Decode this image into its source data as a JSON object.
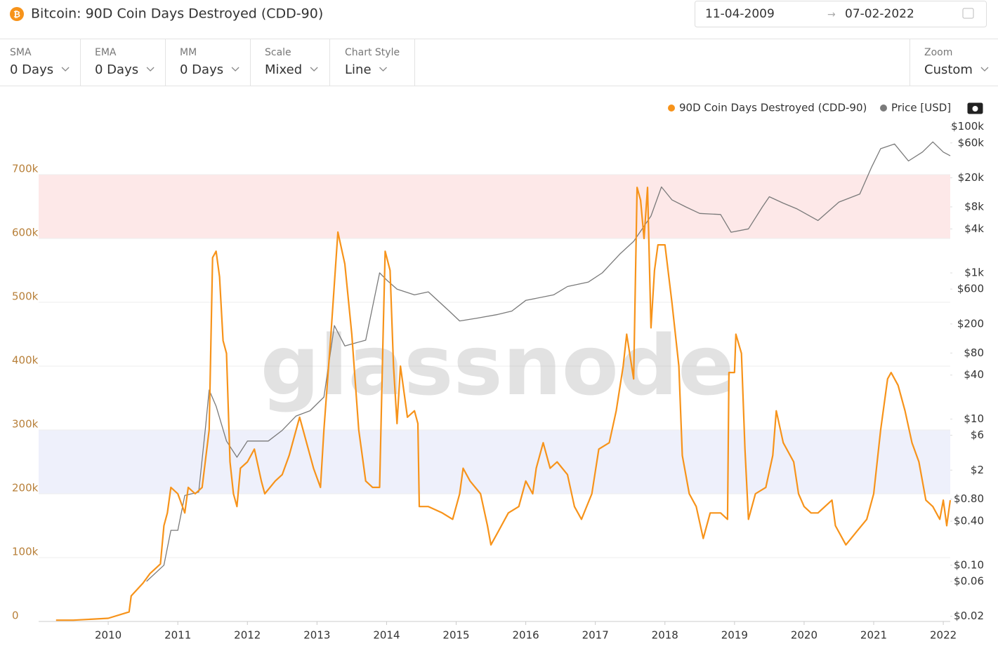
{
  "header": {
    "title": "Bitcoin: 90D Coin Days Destroyed (CDD-90)",
    "date_from": "11-04-2009",
    "date_to": "07-02-2022"
  },
  "controls": [
    {
      "label": "SMA",
      "value": "0 Days"
    },
    {
      "label": "EMA",
      "value": "0 Days"
    },
    {
      "label": "MM",
      "value": "0 Days"
    },
    {
      "label": "Scale",
      "value": "Mixed"
    },
    {
      "label": "Chart Style",
      "value": "Line"
    },
    {
      "label": "Zoom",
      "value": "Custom"
    }
  ],
  "watermark": "glassnode",
  "chart_data": {
    "type": "line",
    "legend": "top-right",
    "grid": true,
    "xlim": [
      2009,
      2022.1
    ],
    "xticks": [
      2010,
      2011,
      2012,
      2013,
      2014,
      2015,
      2016,
      2017,
      2018,
      2019,
      2020,
      2021,
      2022
    ],
    "ylim": [
      0,
      800000
    ],
    "yticks": [
      0,
      {
        "value": 100000,
        "label": "100k"
      },
      {
        "value": 200000,
        "label": "200k"
      },
      {
        "value": 300000,
        "label": "300k"
      },
      {
        "value": 400000,
        "label": "400k"
      },
      {
        "value": 500000,
        "label": "500k"
      },
      {
        "value": 600000,
        "label": "600k"
      },
      {
        "value": 700000,
        "label": "700k"
      }
    ],
    "y2lim": [
      0.017,
      165000
    ],
    "y2log": true,
    "y2ticks": [
      {
        "value": 0.02,
        "label": "$0.02"
      },
      {
        "value": 0.06,
        "label": "$0.06"
      },
      {
        "value": 0.1,
        "label": "$0.10"
      },
      {
        "value": 0.4,
        "label": "$0.40"
      },
      {
        "value": 0.8,
        "label": "$0.80"
      },
      {
        "value": 2,
        "label": "$2"
      },
      {
        "value": 6,
        "label": "$6"
      },
      {
        "value": 10,
        "label": "$10"
      },
      {
        "value": 40,
        "label": "$40"
      },
      {
        "value": 80,
        "label": "$80"
      },
      {
        "value": 200,
        "label": "$200"
      },
      {
        "value": 600,
        "label": "$600"
      },
      {
        "value": 1000,
        "label": "$1k"
      },
      {
        "value": 4000,
        "label": "$4k"
      },
      {
        "value": 8000,
        "label": "$8k"
      },
      {
        "value": 20000,
        "label": "$20k"
      },
      {
        "value": 60000,
        "label": "$60k"
      },
      {
        "value": 100000,
        "label": "$100k"
      }
    ],
    "bands": [
      {
        "from": 600000,
        "to": 700000,
        "color": "#fde8e8"
      },
      {
        "from": 200000,
        "to": 300000,
        "color": "#eef0fb"
      }
    ],
    "series": [
      {
        "name": "90D Coin Days Destroyed (CDD-90)",
        "color": "#f7931a",
        "axis": "y",
        "x": [
          2009.25,
          2009.5,
          2010.0,
          2010.3,
          2010.33,
          2010.5,
          2010.6,
          2010.75,
          2010.8,
          2010.85,
          2010.9,
          2011.0,
          2011.1,
          2011.15,
          2011.25,
          2011.35,
          2011.45,
          2011.5,
          2011.55,
          2011.6,
          2011.65,
          2011.7,
          2011.75,
          2011.8,
          2011.85,
          2011.9,
          2012.0,
          2012.1,
          2012.2,
          2012.25,
          2012.4,
          2012.5,
          2012.6,
          2012.75,
          2012.85,
          2012.95,
          2013.05,
          2013.1,
          2013.2,
          2013.3,
          2013.4,
          2013.5,
          2013.6,
          2013.7,
          2013.8,
          2013.9,
          2013.95,
          2013.98,
          2014.05,
          2014.1,
          2014.15,
          2014.2,
          2014.3,
          2014.4,
          2014.45,
          2014.47,
          2014.6,
          2014.8,
          2014.95,
          2015.05,
          2015.1,
          2015.2,
          2015.35,
          2015.45,
          2015.5,
          2015.6,
          2015.75,
          2015.9,
          2016.0,
          2016.1,
          2016.15,
          2016.25,
          2016.35,
          2016.45,
          2016.6,
          2016.7,
          2016.8,
          2016.95,
          2017.05,
          2017.2,
          2017.3,
          2017.4,
          2017.45,
          2017.55,
          2017.6,
          2017.65,
          2017.7,
          2017.75,
          2017.8,
          2017.85,
          2017.9,
          2018.0,
          2018.1,
          2018.2,
          2018.25,
          2018.35,
          2018.45,
          2018.55,
          2018.65,
          2018.8,
          2018.9,
          2018.92,
          2019.0,
          2019.02,
          2019.1,
          2019.15,
          2019.2,
          2019.3,
          2019.45,
          2019.55,
          2019.6,
          2019.7,
          2019.85,
          2019.92,
          2020.0,
          2020.1,
          2020.2,
          2020.3,
          2020.4,
          2020.45,
          2020.6,
          2020.75,
          2020.9,
          2021.0,
          2021.1,
          2021.2,
          2021.25,
          2021.35,
          2021.45,
          2021.55,
          2021.65,
          2021.75,
          2021.85,
          2021.95,
          2022.0,
          2022.05,
          2022.1
        ],
        "values": [
          2000,
          2000,
          5000,
          15000,
          40000,
          60000,
          75000,
          90000,
          150000,
          170000,
          210000,
          200000,
          170000,
          210000,
          200000,
          210000,
          300000,
          570000,
          580000,
          540000,
          440000,
          420000,
          250000,
          200000,
          180000,
          240000,
          250000,
          270000,
          220000,
          200000,
          220000,
          230000,
          260000,
          320000,
          280000,
          240000,
          210000,
          300000,
          450000,
          610000,
          560000,
          450000,
          300000,
          220000,
          210000,
          210000,
          450000,
          580000,
          550000,
          400000,
          310000,
          400000,
          320000,
          330000,
          310000,
          180000,
          180000,
          170000,
          160000,
          200000,
          240000,
          220000,
          200000,
          150000,
          120000,
          140000,
          170000,
          180000,
          220000,
          200000,
          240000,
          280000,
          240000,
          250000,
          230000,
          180000,
          160000,
          200000,
          270000,
          280000,
          330000,
          400000,
          450000,
          380000,
          680000,
          660000,
          600000,
          680000,
          460000,
          550000,
          590000,
          590000,
          500000,
          400000,
          260000,
          200000,
          180000,
          130000,
          170000,
          170000,
          160000,
          390000,
          390000,
          450000,
          420000,
          270000,
          160000,
          200000,
          210000,
          260000,
          330000,
          280000,
          250000,
          200000,
          180000,
          170000,
          170000,
          180000,
          190000,
          150000,
          120000,
          140000,
          160000,
          200000,
          300000,
          380000,
          390000,
          370000,
          330000,
          280000,
          250000,
          190000,
          180000,
          160000,
          190000,
          150000,
          190000
        ]
      },
      {
        "name": "Price [USD]",
        "color": "#7a7a7a",
        "axis": "y2",
        "x": [
          2010.55,
          2010.8,
          2010.9,
          2011.0,
          2011.1,
          2011.3,
          2011.4,
          2011.45,
          2011.55,
          2011.7,
          2011.85,
          2012.0,
          2012.3,
          2012.5,
          2012.7,
          2012.9,
          2013.1,
          2013.25,
          2013.4,
          2013.7,
          2013.9,
          2014.0,
          2014.15,
          2014.4,
          2014.6,
          2014.9,
          2015.05,
          2015.3,
          2015.6,
          2015.8,
          2016.0,
          2016.4,
          2016.6,
          2016.9,
          2017.1,
          2017.35,
          2017.55,
          2017.8,
          2017.95,
          2018.1,
          2018.3,
          2018.5,
          2018.8,
          2018.95,
          2019.2,
          2019.4,
          2019.5,
          2019.7,
          2019.9,
          2020.2,
          2020.5,
          2020.8,
          2020.97,
          2021.1,
          2021.3,
          2021.5,
          2021.7,
          2021.85,
          2022.0,
          2022.1
        ],
        "values": [
          0.06,
          0.1,
          0.3,
          0.3,
          0.9,
          1,
          8,
          25,
          15,
          5,
          3,
          5,
          5,
          7,
          11,
          13,
          20,
          190,
          100,
          120,
          1000,
          800,
          600,
          500,
          550,
          300,
          220,
          240,
          270,
          300,
          420,
          500,
          650,
          750,
          1000,
          1800,
          2700,
          6000,
          15000,
          10000,
          8000,
          6500,
          6300,
          3600,
          4000,
          8000,
          11000,
          9000,
          7500,
          5200,
          9300,
          12000,
          28000,
          50000,
          58000,
          34000,
          45000,
          62000,
          45000,
          40000
        ]
      }
    ]
  }
}
